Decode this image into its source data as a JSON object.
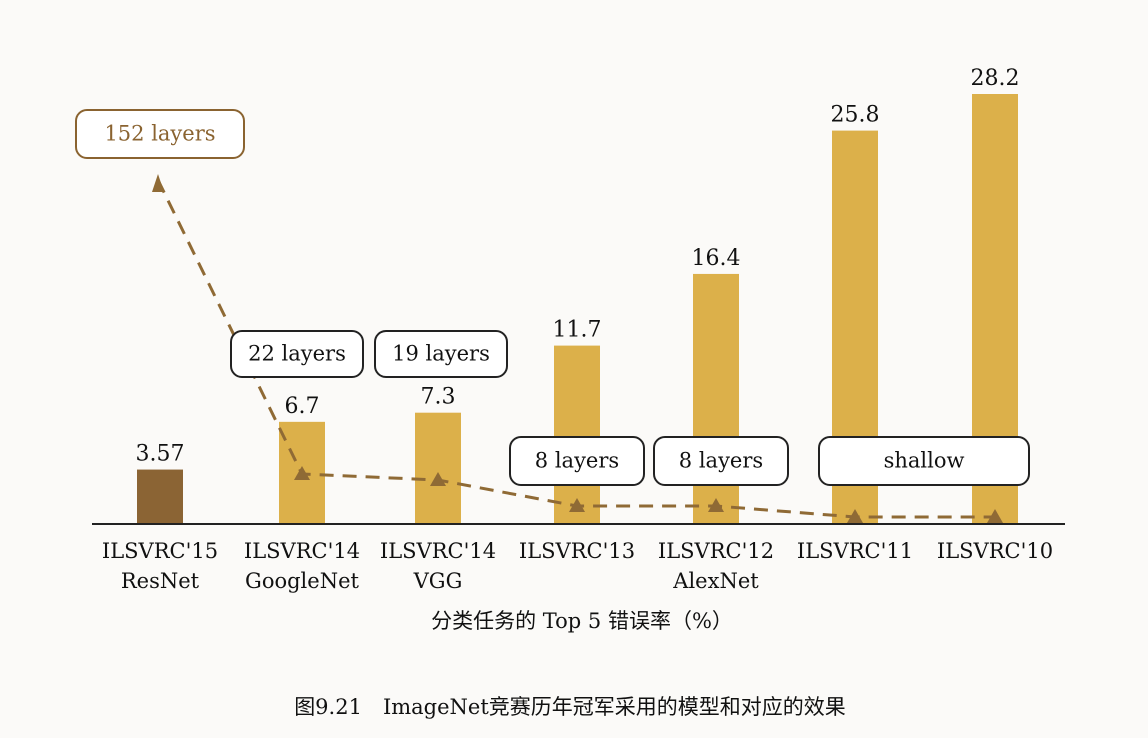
{
  "chart_data": {
    "type": "bar",
    "categories": [
      [
        "ILSVRC'15",
        "ResNet"
      ],
      [
        "ILSVRC'14",
        "GoogleNet"
      ],
      [
        "ILSVRC'14",
        "VGG"
      ],
      [
        "ILSVRC'13"
      ],
      [
        "ILSVRC'12",
        "AlexNet"
      ],
      [
        "ILSVRC'11"
      ],
      [
        "ILSVRC'10"
      ]
    ],
    "values": [
      3.57,
      6.7,
      7.3,
      11.7,
      16.4,
      25.8,
      28.2
    ],
    "value_labels": [
      "3.57",
      "6.7",
      "7.3",
      "11.7",
      "16.4",
      "25.8",
      "28.2"
    ],
    "colors": [
      "#8b6434",
      "#dcb04a",
      "#dcb04a",
      "#dcb04a",
      "#dcb04a",
      "#dcb04a",
      "#dcb04a"
    ],
    "layer_series": {
      "type": "line",
      "style": "dashed",
      "marker": "triangle",
      "color": "#8f6a35",
      "values": [
        152,
        22,
        19,
        8,
        8,
        null,
        null
      ]
    },
    "layer_annotations": [
      "152 layers",
      "22 layers",
      "19 layers",
      "8 layers",
      "8 layers",
      "shallow"
    ],
    "xlabel": "分类任务的 Top 5 错误率（%）",
    "ylim": [
      0,
      30
    ],
    "grid": false
  },
  "caption": "图9.21　ImageNet竞赛历年冠军采用的模型和对应的效果"
}
